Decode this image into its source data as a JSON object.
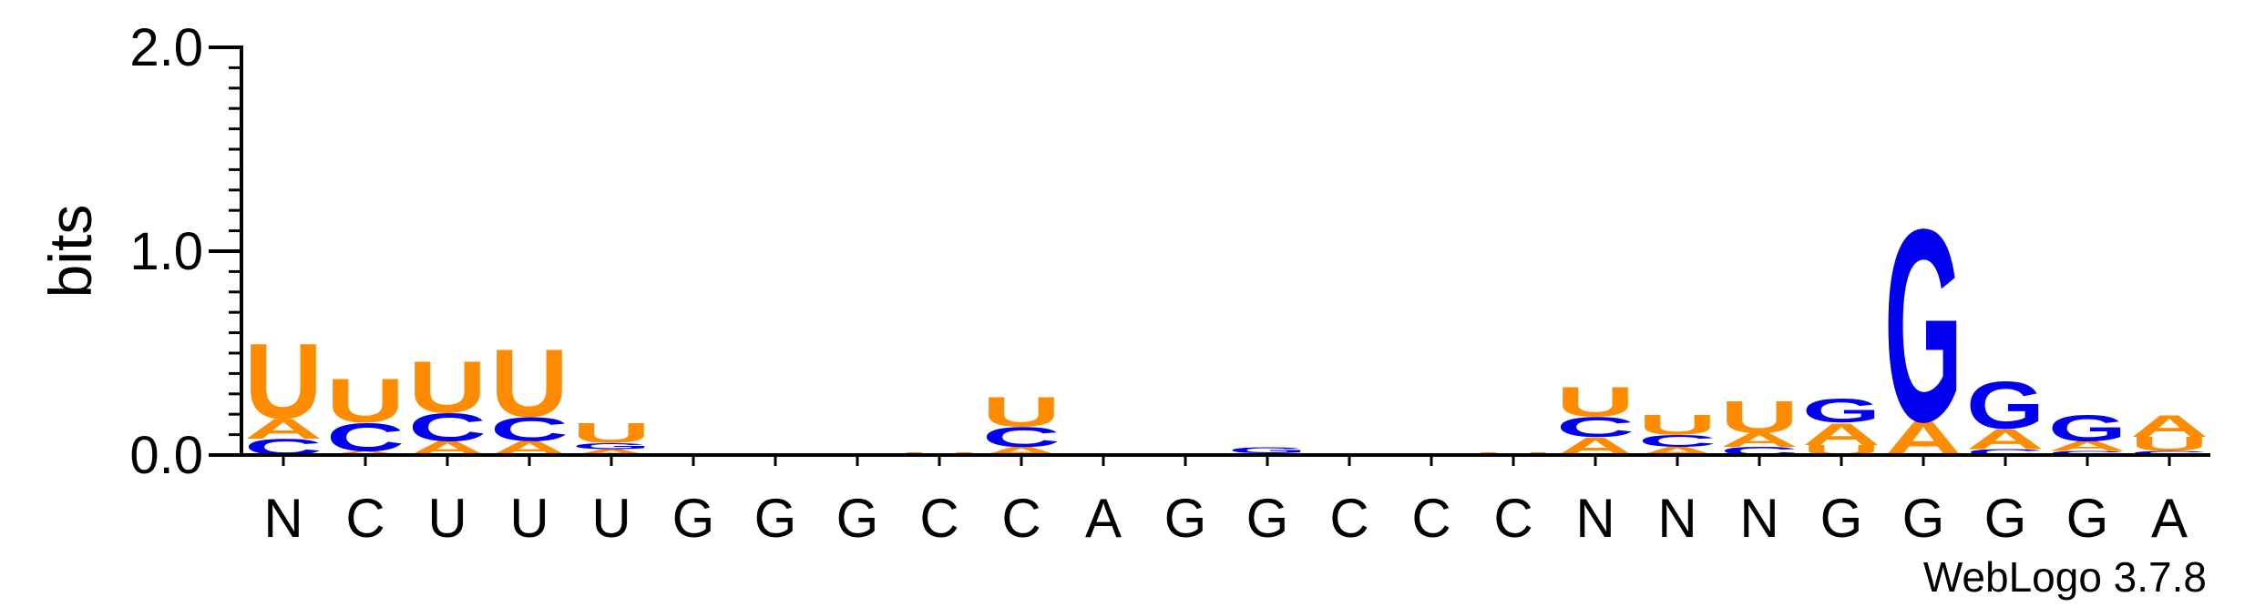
{
  "chart_data": {
    "type": "sequence-logo",
    "title": "",
    "xlabel": "",
    "ylabel": "bits",
    "ylim": [
      0,
      2.0
    ],
    "yticks": [
      "0.0",
      "1.0",
      "2.0"
    ],
    "ytick_values": [
      0,
      1,
      2
    ],
    "credit": "WebLogo 3.7.8",
    "colors": {
      "A": "#ff8c00",
      "U": "#ff8c00",
      "C": "#0000ee",
      "G": "#0000ee"
    },
    "positions": [
      {
        "label": "N",
        "stack": [
          [
            "C",
            0.08
          ],
          [
            "A",
            0.1
          ],
          [
            "U",
            0.38
          ]
        ]
      },
      {
        "label": "C",
        "stack": [
          [
            "A",
            0.02
          ],
          [
            "C",
            0.14
          ],
          [
            "U",
            0.22
          ]
        ]
      },
      {
        "label": "U",
        "stack": [
          [
            "A",
            0.07
          ],
          [
            "C",
            0.14
          ],
          [
            "U",
            0.26
          ]
        ]
      },
      {
        "label": "U",
        "stack": [
          [
            "A",
            0.07
          ],
          [
            "C",
            0.12
          ],
          [
            "U",
            0.34
          ]
        ]
      },
      {
        "label": "U",
        "stack": [
          [
            "A",
            0.03
          ],
          [
            "G",
            0.03
          ],
          [
            "U",
            0.1
          ]
        ]
      },
      {
        "label": "G",
        "stack": []
      },
      {
        "label": "G",
        "stack": []
      },
      {
        "label": "G",
        "stack": []
      },
      {
        "label": "C",
        "stack": [
          [
            "U",
            0.015
          ]
        ]
      },
      {
        "label": "C",
        "stack": [
          [
            "A",
            0.04
          ],
          [
            "C",
            0.1
          ],
          [
            "U",
            0.15
          ]
        ]
      },
      {
        "label": "A",
        "stack": [
          [
            "U",
            0.01
          ]
        ]
      },
      {
        "label": "G",
        "stack": []
      },
      {
        "label": "G",
        "stack": [
          [
            "A",
            0.01
          ],
          [
            "G",
            0.03
          ]
        ]
      },
      {
        "label": "C",
        "stack": []
      },
      {
        "label": "C",
        "stack": []
      },
      {
        "label": "C",
        "stack": [
          [
            "U",
            0.015
          ]
        ]
      },
      {
        "label": "N",
        "stack": [
          [
            "A",
            0.09
          ],
          [
            "C",
            0.1
          ],
          [
            "U",
            0.15
          ]
        ]
      },
      {
        "label": "N",
        "stack": [
          [
            "A",
            0.04
          ],
          [
            "C",
            0.06
          ],
          [
            "U",
            0.1
          ]
        ]
      },
      {
        "label": "N",
        "stack": [
          [
            "C",
            0.04
          ],
          [
            "A",
            0.07
          ],
          [
            "U",
            0.16
          ]
        ]
      },
      {
        "label": "G",
        "stack": [
          [
            "U",
            0.05
          ],
          [
            "A",
            0.11
          ],
          [
            "G",
            0.12
          ]
        ]
      },
      {
        "label": "G",
        "stack": [
          [
            "A",
            0.17
          ],
          [
            "G",
            0.97
          ]
        ]
      },
      {
        "label": "G",
        "stack": [
          [
            "C",
            0.03
          ],
          [
            "A",
            0.1
          ],
          [
            "G",
            0.24
          ]
        ]
      },
      {
        "label": "G",
        "stack": [
          [
            "C",
            0.02
          ],
          [
            "A",
            0.05
          ],
          [
            "G",
            0.13
          ]
        ]
      },
      {
        "label": "A",
        "stack": [
          [
            "C",
            0.02
          ],
          [
            "U",
            0.07
          ],
          [
            "A",
            0.11
          ]
        ]
      }
    ]
  }
}
